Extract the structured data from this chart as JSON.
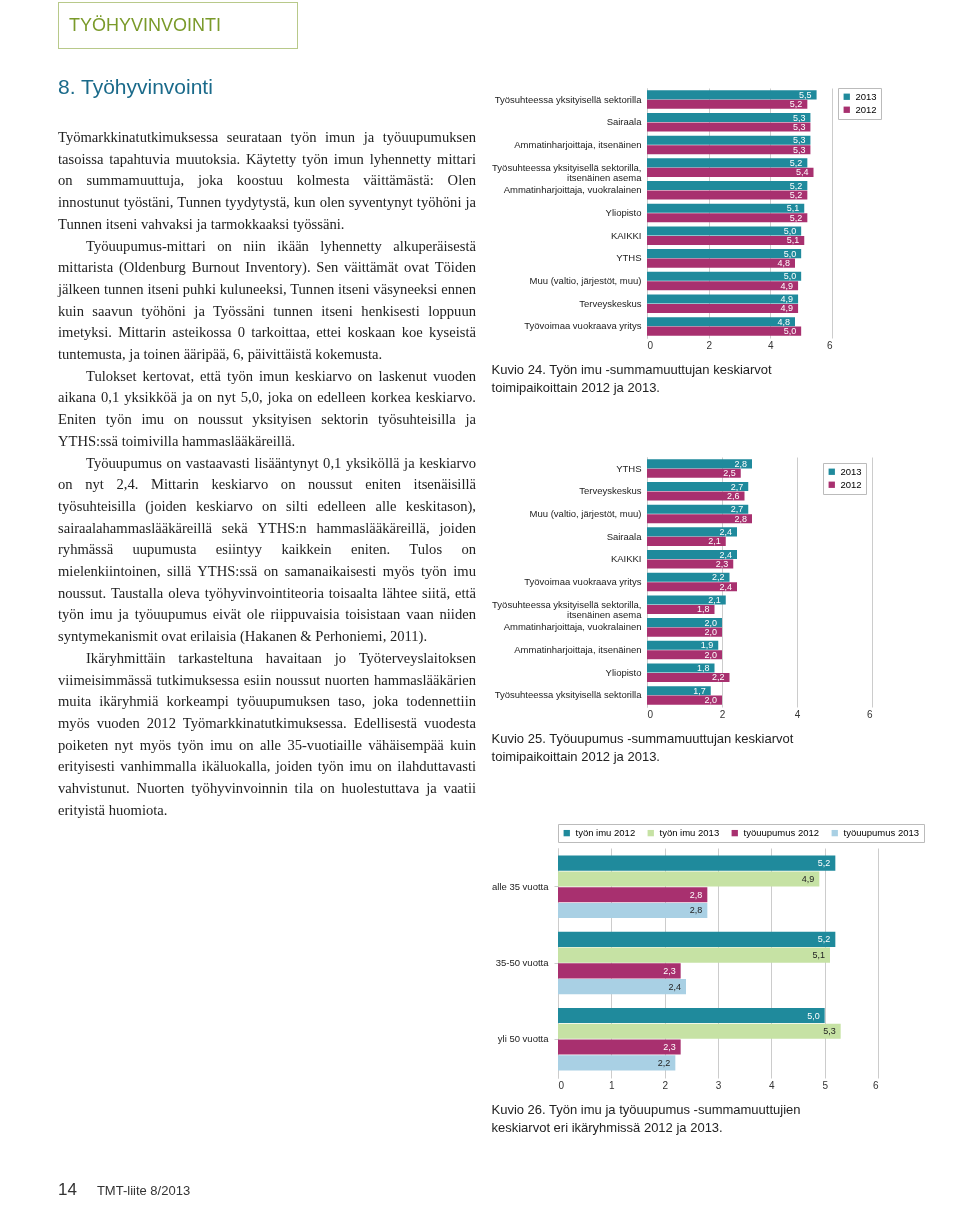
{
  "chart_data": [
    {
      "type": "other",
      "title": "8. Työhyvinvointi",
      "annotations": [
        "TYÖHYVINVOINTI",
        "Työmarkkinatutkimuksessa seurataan työn imun ja työuupumuksen tasoissa tapahtuvia muutoksia. Käytetty työn imun lyhennetty mittari on summamuuttuja, joka koostuu kolmesta väittämästä: Olen innostunut työstäni, Tunnen tyydytystä, kun olen syventynyt työhöni ja Tunnen itseni vahvaksi ja tarmokkaaksi työssäni.",
        "Työuupumus-mittari on niin ikään lyhennetty alkuperäisestä mittarista (Oldenburg Burnout Inventory). Sen väittämät ovat Töiden jälkeen tunnen itseni puhki kuluneeksi, Tunnen itseni väsyneeksi ennen kuin saavun työhöni ja Työssäni tunnen itseni henkisesti loppuun imetyksi. Mittarin asteikossa 0 tarkoittaa, ettei koskaan koe kyseistä tuntemusta, ja toinen ääripää, 6, päivittäistä kokemusta.",
        "Tulokset kertovat, että työn imun keskiarvo on laskenut vuoden aikana 0,1 yksikköä ja on nyt 5,0, joka on edelleen korkea keskiarvo. Eniten työn imu on noussut yksityisen sektorin työsuhteisilla ja YTHS:ssä toimivilla hammaslääkäreillä.",
        "Työuupumus on vastaavasti lisääntynyt 0,1 yksiköllä ja keskiarvo on nyt 2,4. Mittarin keskiarvo on noussut eniten itsenäisillä työsuhteisilla (joiden keskiarvo on silti edelleen alle keskitason), sairaalahammaslääkäreillä sekä YTHS:n hammaslääkäreillä, joiden ryhmässä uupumusta esiintyy kaikkein eniten. Tulos on mielenkiintoinen, sillä YTHS:ssä on samanaikaisesti myös työn imu noussut. Taustalla oleva työhyvinvointiteoria toisaalta lähtee siitä, että työn imu ja työuupumus eivät ole riippuvaisia toisistaan vaan niiden syntymekanismit ovat erilaisia (Hakanen & Perhoniemi, 2011).",
        "Ikäryhmittäin tarkasteltuna havaitaan jo Työterveyslaitoksen viimeisimmässä tutkimuksessa esiin noussut nuorten hammaslääkärien muita ikäryhmiä korkeampi työuupumuksen taso, joka todennettiin myös vuoden 2012 Työmarkkinatutkimuksessa. Edellisestä vuodesta poiketen nyt myös työn imu on alle 35-vuotiaille vähäisempää kuin erityisesti vanhimmalla ikäluokalla, joiden työn imu on ilahduttavasti vahvistunut. Nuorten työhyvinvoinnin tila on huolestuttava ja vaatii erityistä huomiota.",
        "14",
        "TMT-liite 8/2013"
      ]
    },
    {
      "type": "bar",
      "orientation": "horizontal",
      "title": "Kuvio 24. Työn imu -summamuuttujan keskiarvot toimipaikoittain 2012 ja 2013.",
      "categories": [
        "Työsuhteessa yksityisellä sektorilla",
        "Sairaala",
        "Ammatinharjoittaja, itsenäinen",
        "Työsuhteessa yksityisellä sektorilla, itsenäinen asema",
        "Ammatinharjoittaja, vuokralainen",
        "Yliopisto",
        "KAIKKI",
        "YTHS",
        "Muu (valtio, järjestöt, muu)",
        "Terveyskeskus",
        "Työvoimaa vuokraava yritys"
      ],
      "series": [
        {
          "name": "2013",
          "color": "#1f8a9c",
          "values": [
            5.5,
            5.3,
            5.3,
            5.2,
            5.2,
            5.1,
            5.0,
            5.0,
            5.0,
            4.9,
            4.8
          ],
          "value_labels": [
            "5,5",
            "5,3",
            "5,3",
            "5,2",
            "5,2",
            "5,1",
            "5,0",
            "5,0",
            "5,0",
            "4,9",
            "4,8"
          ]
        },
        {
          "name": "2012",
          "color": "#a8306f",
          "values": [
            5.2,
            5.3,
            5.3,
            5.4,
            5.2,
            5.2,
            5.1,
            4.8,
            4.9,
            4.9,
            5.0
          ],
          "value_labels": [
            "5,2",
            "5,3",
            "5,3",
            "5,4",
            "5,2",
            "5,2",
            "5,1",
            "4,8",
            "4,9",
            "4,9",
            "5,0"
          ]
        }
      ],
      "xlim": [
        0,
        6
      ],
      "xticks": [
        0,
        2,
        4,
        6
      ],
      "grid": "x",
      "legend": "right"
    },
    {
      "type": "bar",
      "orientation": "horizontal",
      "title": "Kuvio 25. Työuupumus -summamuuttujan keskiarvot toimipaikoittain 2012 ja 2013.",
      "categories": [
        "YTHS",
        "Terveyskeskus",
        "Muu (valtio, järjestöt, muu)",
        "Sairaala",
        "KAIKKI",
        "Työvoimaa vuokraava yritys",
        "Työsuhteessa yksityisellä sektorilla, itsenäinen asema",
        "Ammatinharjoittaja, vuokralainen",
        "Ammatinharjoittaja, itsenäinen",
        "Yliopisto",
        "Työsuhteessa yksityisellä sektorilla"
      ],
      "series": [
        {
          "name": "2013",
          "color": "#1f8a9c",
          "values": [
            2.8,
            2.7,
            2.7,
            2.4,
            2.4,
            2.2,
            2.1,
            2.0,
            1.9,
            1.8,
            1.7
          ],
          "value_labels": [
            "2,8",
            "2,7",
            "2,7",
            "2,4",
            "2,4",
            "2,2",
            "2,1",
            "2,0",
            "1,9",
            "1,8",
            "1,7"
          ]
        },
        {
          "name": "2012",
          "color": "#a8306f",
          "values": [
            2.5,
            2.6,
            2.8,
            2.1,
            2.3,
            2.4,
            1.8,
            2.0,
            2.0,
            2.2,
            2.0
          ],
          "value_labels": [
            "2,5",
            "2,6",
            "2,8",
            "2,1",
            "2,3",
            "2,4",
            "1,8",
            "2,0",
            "2,0",
            "2,2",
            "2,0"
          ]
        }
      ],
      "xlim": [
        0,
        6
      ],
      "xticks": [
        0,
        2,
        4,
        6
      ],
      "grid": "x",
      "legend": "top right"
    },
    {
      "type": "bar",
      "orientation": "horizontal",
      "title": "Kuvio 26. Työn imu ja työuupumus -summamuuttujien keskiarvot eri ikäryhmissä 2012 ja 2013.",
      "categories": [
        "alle 35 vuotta",
        "35-50 vuotta",
        "yli 50 vuotta"
      ],
      "series": [
        {
          "name": "työn imu 2012",
          "color": "#1f8a9c",
          "values": [
            5.2,
            5.2,
            5.0
          ],
          "value_labels": [
            "5,2",
            "5,2",
            "5,0"
          ]
        },
        {
          "name": "työn imu 2013",
          "color": "#c6e2a4",
          "values": [
            4.9,
            5.1,
            5.3
          ],
          "value_labels": [
            "4,9",
            "5,1",
            "5,3"
          ]
        },
        {
          "name": "työuupumus 2012",
          "color": "#a8306f",
          "values": [
            2.8,
            2.3,
            2.3
          ],
          "value_labels": [
            "2,8",
            "2,3",
            "2,3"
          ]
        },
        {
          "name": "työuupumus 2013",
          "color": "#a9d0e4",
          "values": [
            2.8,
            2.4,
            2.2
          ],
          "value_labels": [
            "2,8",
            "2,4",
            "2,2"
          ]
        }
      ],
      "xlim": [
        0,
        6
      ],
      "xticks": [
        0,
        1,
        2,
        3,
        4,
        5,
        6
      ],
      "grid": "x",
      "legend": "top"
    }
  ]
}
